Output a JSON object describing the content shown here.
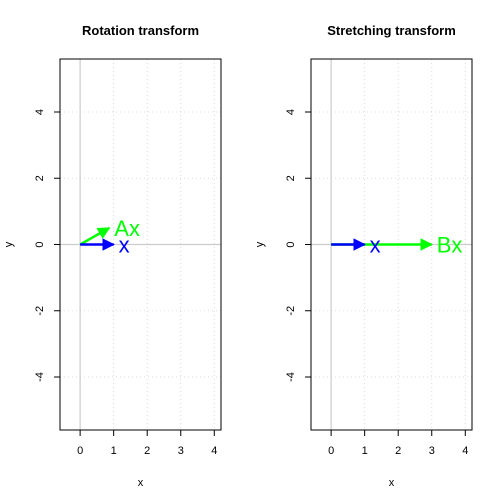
{
  "chart_data": [
    {
      "type": "line",
      "title": "Rotation transform",
      "xlabel": "x",
      "ylabel": "y",
      "xlim": [
        -0.6,
        4.2
      ],
      "ylim": [
        -5.6,
        5.6
      ],
      "xticks": [
        0,
        1,
        2,
        3,
        4
      ],
      "yticks": [
        -4,
        -2,
        0,
        2,
        4
      ],
      "grid": true,
      "reference_lines": {
        "x": 0,
        "y": 0,
        "color": "#cccccc"
      },
      "vectors": [
        {
          "name": "x",
          "label": "x",
          "from": [
            0,
            0
          ],
          "to": [
            1,
            0
          ],
          "color": "#0000ff"
        },
        {
          "name": "Ax",
          "label": "Ax",
          "from": [
            0,
            0
          ],
          "to": [
            0.87,
            0.5
          ],
          "color": "#00ff00"
        }
      ]
    },
    {
      "type": "line",
      "title": "Stretching transform",
      "xlabel": "x",
      "ylabel": "y",
      "xlim": [
        -0.6,
        4.2
      ],
      "ylim": [
        -5.6,
        5.6
      ],
      "xticks": [
        0,
        1,
        2,
        3,
        4
      ],
      "yticks": [
        -4,
        -2,
        0,
        2,
        4
      ],
      "grid": true,
      "reference_lines": {
        "x": 0,
        "y": 0,
        "color": "#cccccc"
      },
      "vectors": [
        {
          "name": "x",
          "label": "x",
          "from": [
            0,
            0
          ],
          "to": [
            1,
            0
          ],
          "color": "#0000ff"
        },
        {
          "name": "Bx",
          "label": "Bx",
          "from": [
            0,
            0
          ],
          "to": [
            3,
            0
          ],
          "color": "#00ff00"
        }
      ]
    }
  ]
}
